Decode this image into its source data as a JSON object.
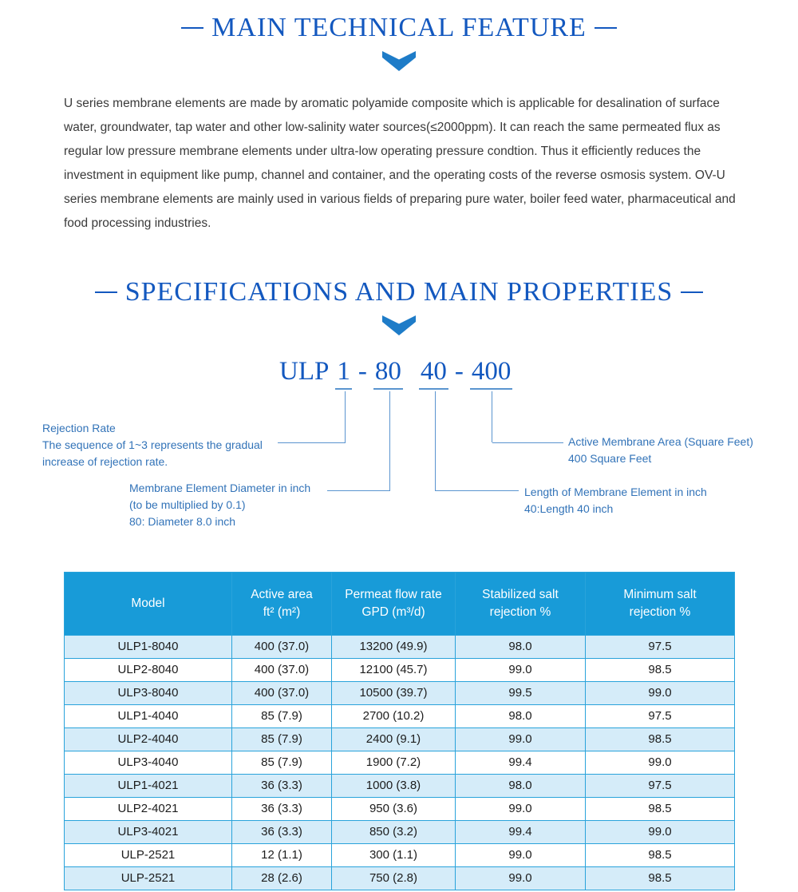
{
  "colors": {
    "title_blue": "#1358bf",
    "table_header_blue": "#189bd8",
    "row_alt_blue": "#d5ecf9",
    "callout_blue": "#3273b8",
    "connector_blue": "#5a94cf"
  },
  "section_feature": {
    "title": "MAIN TECHNICAL FEATURE",
    "intro": "U series membrane elements are made by aromatic polyamide composite which is applicable for desalination of surface water, groundwater, tap water and other low-salinity water sources(≤2000ppm). It can reach the same permeated flux as regular low pressure membrane elements under ultra-low operating pressure condtion. Thus it efficiently reduces the investment in equipment like pump, channel and container, and the operating costs of the reverse osmosis system. OV-U series membrane elements are mainly used in various fields of preparing pure water, boiler feed water, pharmaceutical and food processing industries."
  },
  "section_specs": {
    "title": "SPECIFICATIONS AND MAIN PROPERTIES",
    "model_code": {
      "segments": [
        "ULP",
        "1",
        "-",
        "80",
        "40",
        "-",
        "400"
      ]
    },
    "callouts": {
      "rejection": {
        "line1": "Rejection Rate",
        "line2": "The sequence of 1~3 represents the gradual",
        "line3": "increase of rejection rate."
      },
      "diameter": {
        "line1": "Membrane Element Diameter in inch",
        "line2": "(to be multiplied by 0.1)",
        "line3": "80: Diameter 8.0 inch"
      },
      "area": {
        "line1": "Active Membrane Area (Square Feet)",
        "line2": "400 Square Feet"
      },
      "length": {
        "line1": "Length of Membrane Element in inch",
        "line2": "40:Length 40 inch"
      }
    }
  },
  "table": {
    "headers": [
      "Model",
      "Active area\nft² (m²)",
      "Permeat flow rate\nGPD (m³/d)",
      "Stabilized salt\nrejection %",
      "Minimum salt\nrejection %"
    ],
    "rows": [
      [
        "ULP1-8040",
        "400 (37.0)",
        "13200 (49.9)",
        "98.0",
        "97.5"
      ],
      [
        "ULP2-8040",
        "400 (37.0)",
        "12100 (45.7)",
        "99.0",
        "98.5"
      ],
      [
        "ULP3-8040",
        "400 (37.0)",
        "10500 (39.7)",
        "99.5",
        "99.0"
      ],
      [
        "ULP1-4040",
        "85 (7.9)",
        "2700 (10.2)",
        "98.0",
        "97.5"
      ],
      [
        "ULP2-4040",
        "85 (7.9)",
        "2400 (9.1)",
        "99.0",
        "98.5"
      ],
      [
        "ULP3-4040",
        "85 (7.9)",
        "1900 (7.2)",
        "99.4",
        "99.0"
      ],
      [
        "ULP1-4021",
        "36 (3.3)",
        "1000 (3.8)",
        "98.0",
        "97.5"
      ],
      [
        "ULP2-4021",
        "36 (3.3)",
        "950 (3.6)",
        "99.0",
        "98.5"
      ],
      [
        "ULP3-4021",
        "36 (3.3)",
        "850 (3.2)",
        "99.4",
        "99.0"
      ],
      [
        "ULP-2521",
        "12 (1.1)",
        "300 (1.1)",
        "99.0",
        "98.5"
      ],
      [
        "ULP-2521",
        "28 (2.6)",
        "750 (2.8)",
        "99.0",
        "98.5"
      ]
    ]
  }
}
